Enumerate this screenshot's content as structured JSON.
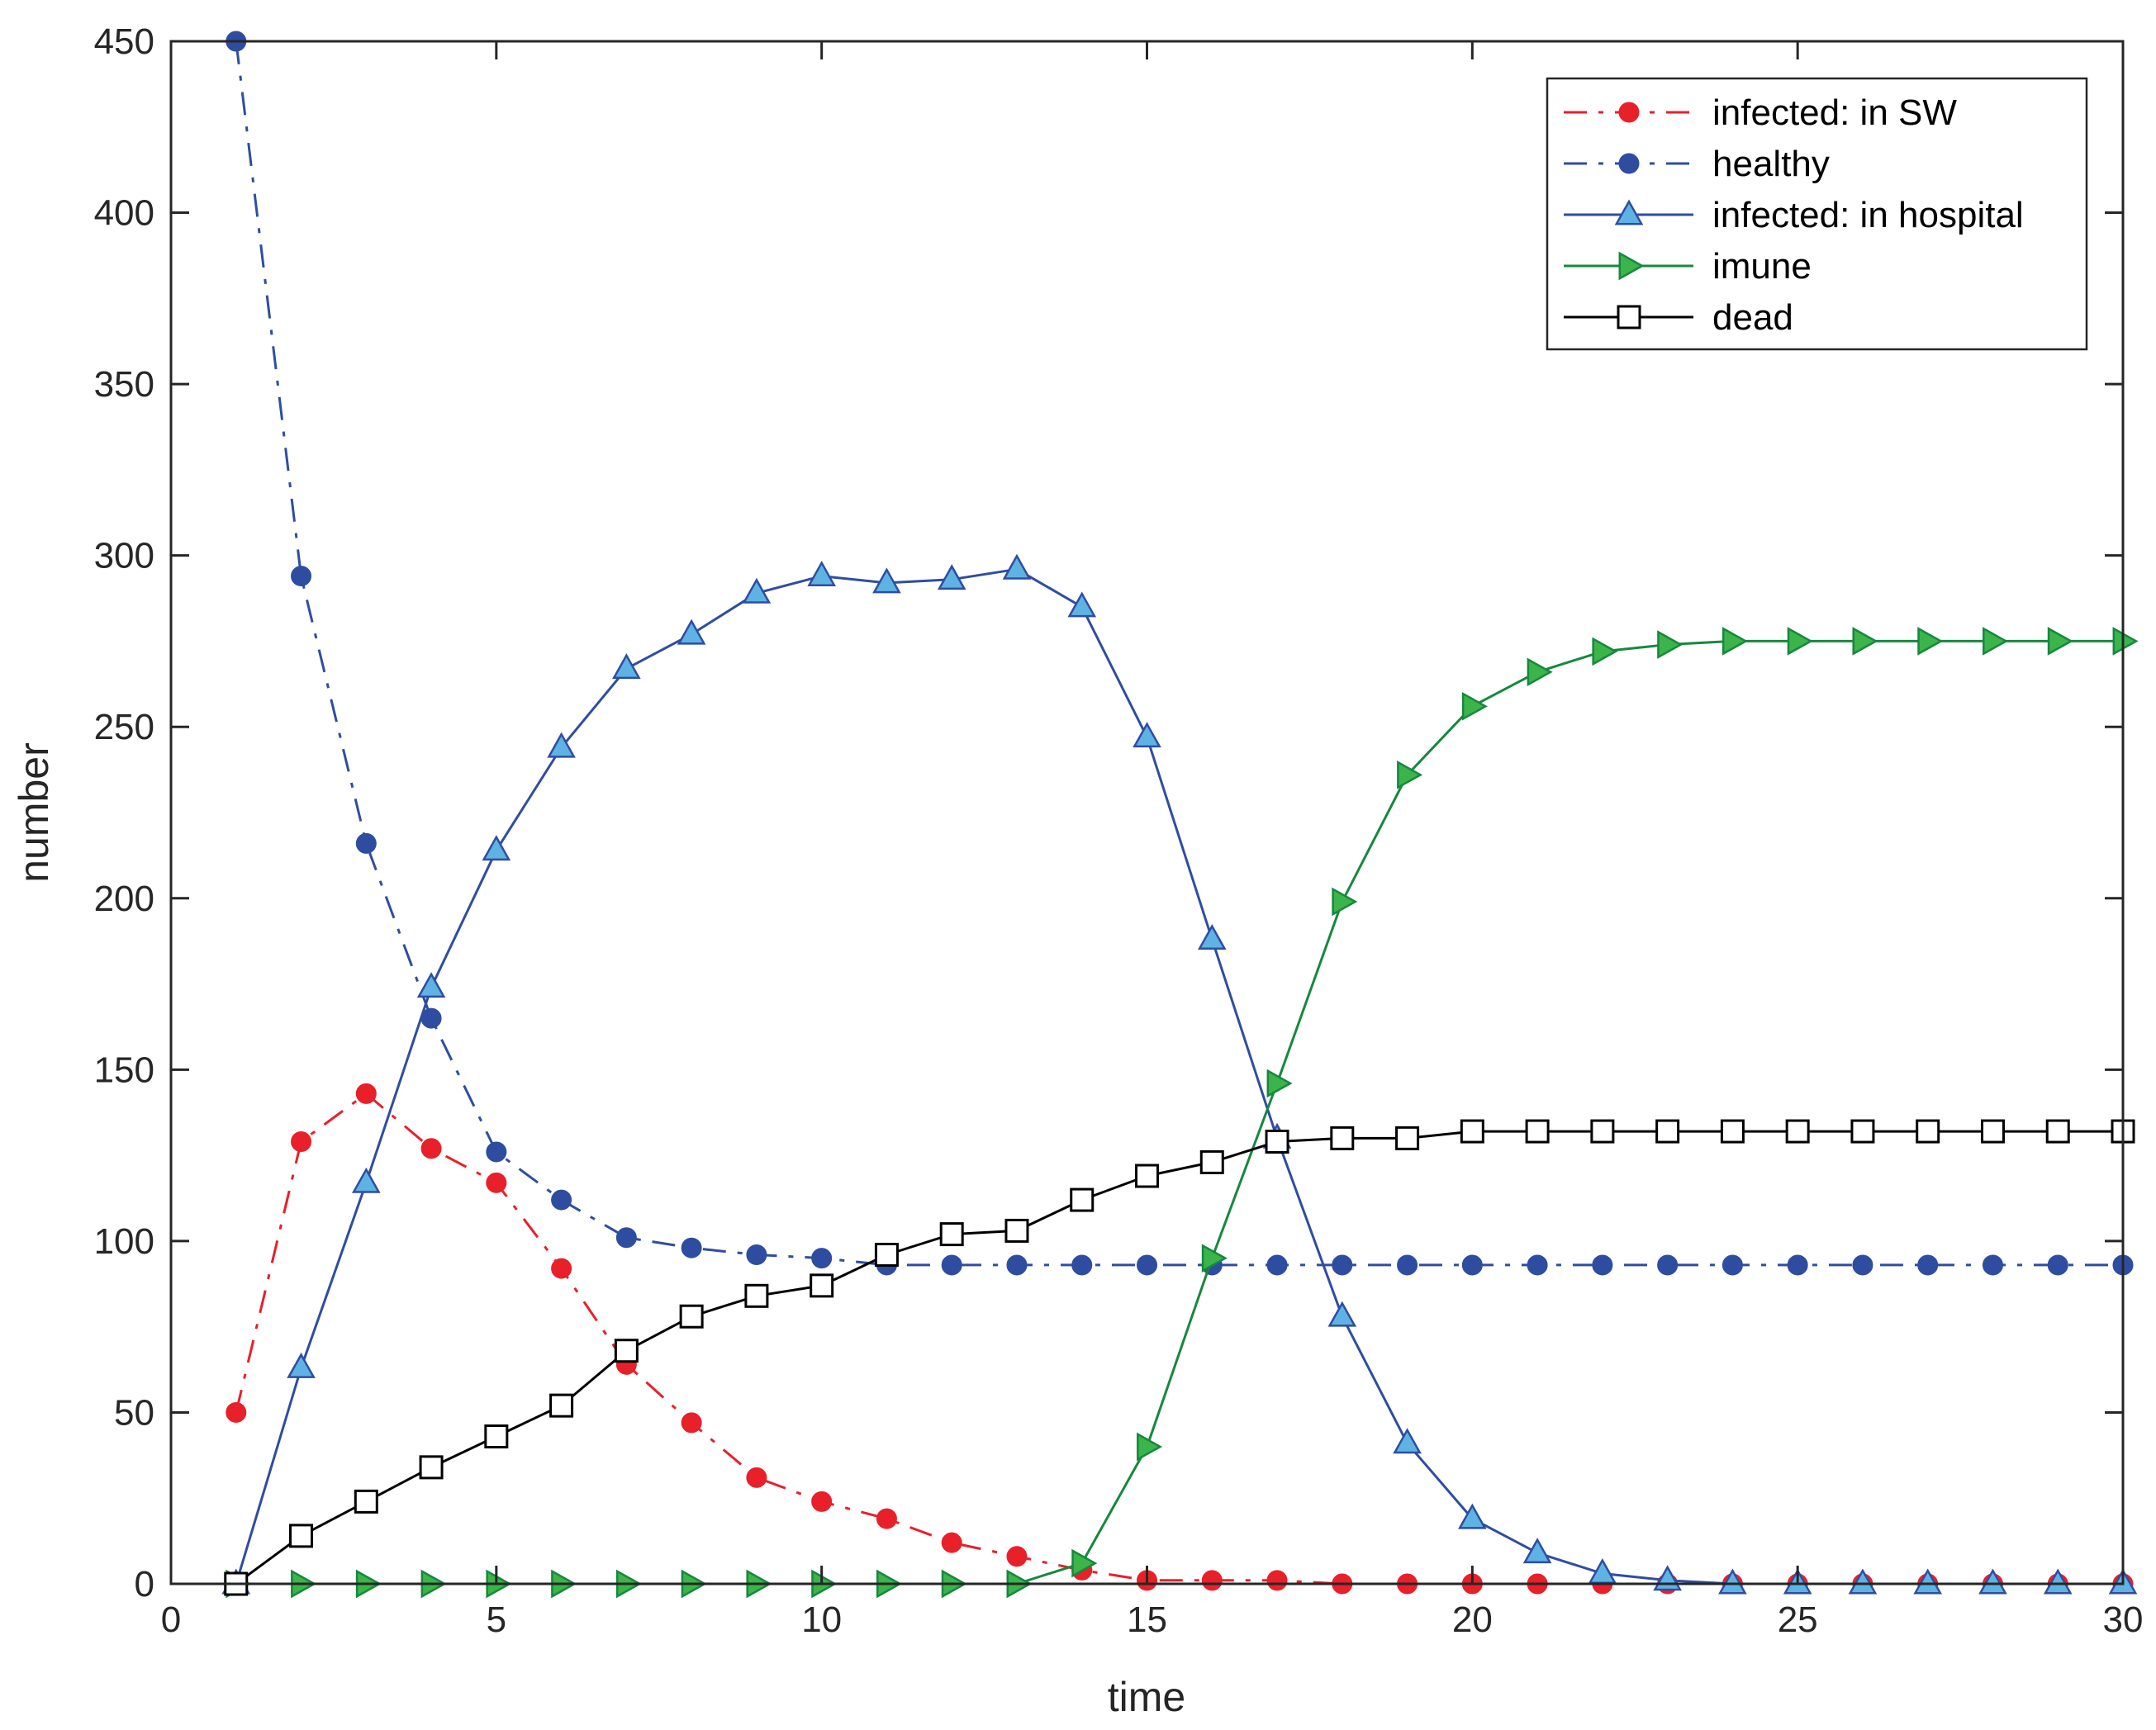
{
  "chart_data": {
    "type": "line",
    "xlabel": "time",
    "ylabel": "number",
    "xlim": [
      0,
      30
    ],
    "ylim": [
      0,
      450
    ],
    "xticks": [
      0,
      5,
      10,
      15,
      20,
      25,
      30
    ],
    "yticks": [
      0,
      50,
      100,
      150,
      200,
      250,
      300,
      350,
      400,
      450
    ],
    "grid": false,
    "legend_position": "top-right",
    "x": [
      1,
      2,
      3,
      4,
      5,
      6,
      7,
      8,
      9,
      10,
      11,
      12,
      13,
      14,
      15,
      16,
      17,
      18,
      19,
      20,
      21,
      22,
      23,
      24,
      25,
      26,
      27,
      28,
      29,
      30
    ],
    "series": [
      {
        "name": "infected: in SW",
        "color": "#e8202a",
        "line_style": "dashdot",
        "marker": "circle",
        "values": [
          50,
          129,
          143,
          127,
          117,
          92,
          64,
          47,
          31,
          24,
          19,
          12,
          8,
          4,
          1,
          1,
          1,
          0,
          0,
          0,
          0,
          0,
          0,
          0,
          0,
          0,
          0,
          0,
          0,
          0
        ]
      },
      {
        "name": "healthy",
        "color": "#2f4da0",
        "line_style": "dashdot",
        "marker": "circle",
        "values": [
          450,
          294,
          216,
          165,
          126,
          112,
          101,
          98,
          96,
          95,
          93,
          93,
          93,
          93,
          93,
          93,
          93,
          93,
          93,
          93,
          93,
          93,
          93,
          93,
          93,
          93,
          93,
          93,
          93,
          93
        ]
      },
      {
        "name": "infected: in hospital",
        "color": "#2f4da0",
        "marker_fill": "#5eb3e4",
        "line_style": "solid",
        "marker": "triangle-up",
        "values": [
          0,
          63,
          117,
          174,
          214,
          244,
          267,
          277,
          289,
          294,
          292,
          293,
          296,
          285,
          247,
          188,
          130,
          78,
          41,
          19,
          9,
          3,
          1,
          0,
          0,
          0,
          0,
          0,
          0,
          0
        ]
      },
      {
        "name": "imune",
        "color": "#16883e",
        "marker_fill": "#3bb54a",
        "line_style": "solid",
        "marker": "triangle-right",
        "values": [
          0,
          0,
          0,
          0,
          0,
          0,
          0,
          0,
          0,
          0,
          0,
          0,
          0,
          6,
          40,
          95,
          146,
          199,
          236,
          256,
          266,
          272,
          274,
          275,
          275,
          275,
          275,
          275,
          275,
          275
        ]
      },
      {
        "name": "dead",
        "color": "#000000",
        "marker_fill": "#ffffff",
        "line_style": "solid",
        "marker": "square",
        "values": [
          0,
          14,
          24,
          34,
          43,
          52,
          68,
          78,
          84,
          87,
          96,
          102,
          103,
          112,
          119,
          123,
          129,
          130,
          130,
          132,
          132,
          132,
          132,
          132,
          132,
          132,
          132,
          132,
          132,
          132
        ]
      }
    ]
  }
}
